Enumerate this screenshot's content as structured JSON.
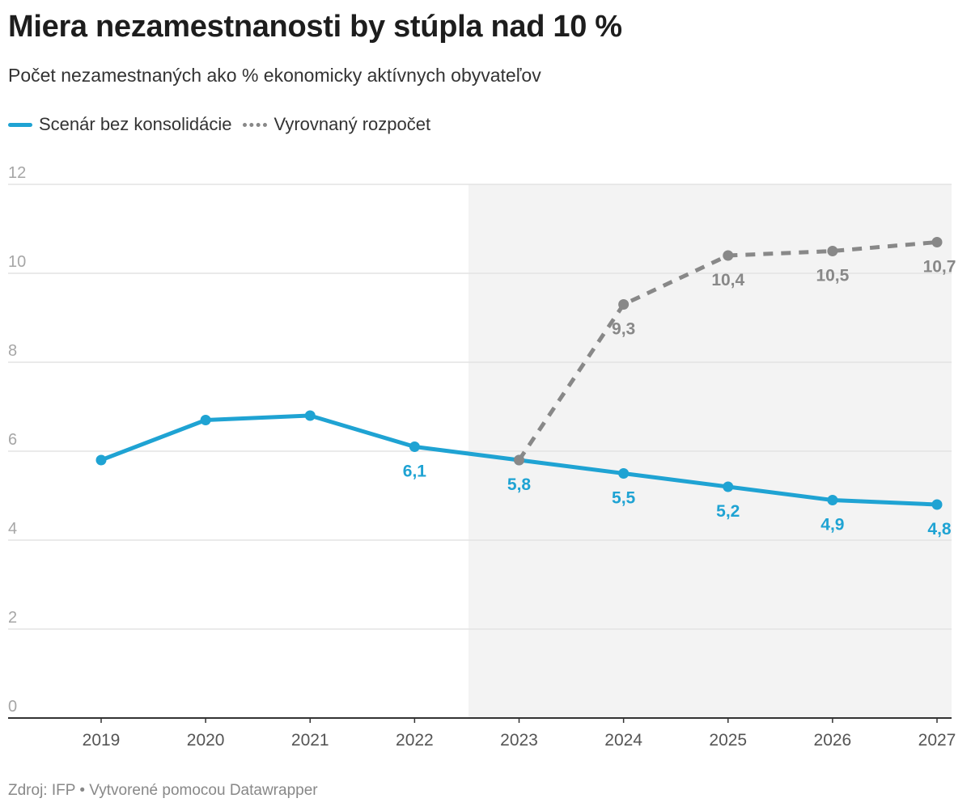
{
  "header": {
    "title": "Miera nezamestnanosti by stúpla nad 10 %",
    "subtitle": "Počet nezamestnaných ako % ekonomicky aktívnych obyvateľov"
  },
  "legend": {
    "items": [
      {
        "label": "Scenár bez konsolidácie",
        "color": "#1fa3d3",
        "style": "solid"
      },
      {
        "label": "Vyrovnaný rozpočet",
        "color": "#888888",
        "style": "dashed"
      }
    ]
  },
  "footer": {
    "source": "Zdroj: IFP • Vytvorené pomocou Datawrapper"
  },
  "chart_data": {
    "type": "line",
    "title": "Miera nezamestnanosti by stúpla nad 10 %",
    "subtitle": "Počet nezamestnaných ako % ekonomicky aktívnych obyvateľov",
    "xlabel": "",
    "ylabel": "",
    "categories": [
      "2019",
      "2020",
      "2021",
      "2022",
      "2023",
      "2024",
      "2025",
      "2026",
      "2027"
    ],
    "ylim": [
      0,
      12
    ],
    "yticks": [
      "0",
      "2",
      "4",
      "6",
      "8",
      "10",
      "12"
    ],
    "grid": true,
    "highlight_region": {
      "from": "2023",
      "to": "2027",
      "color": "#f3f3f3"
    },
    "series": [
      {
        "name": "Scenár bez konsolidácie",
        "color": "#1fa3d3",
        "style": "solid",
        "values": [
          5.8,
          6.7,
          6.8,
          6.1,
          5.8,
          5.5,
          5.2,
          4.9,
          4.8
        ],
        "labels": [
          null,
          null,
          null,
          "6,1",
          "5,8",
          "5,5",
          "5,2",
          "4,9",
          "4,8"
        ]
      },
      {
        "name": "Vyrovnaný rozpočet",
        "color": "#888888",
        "style": "dashed",
        "values": [
          null,
          null,
          null,
          null,
          5.8,
          9.3,
          10.4,
          10.5,
          10.7
        ],
        "labels": [
          null,
          null,
          null,
          null,
          null,
          "9,3",
          "10,4",
          "10,5",
          "10,7"
        ]
      }
    ]
  }
}
